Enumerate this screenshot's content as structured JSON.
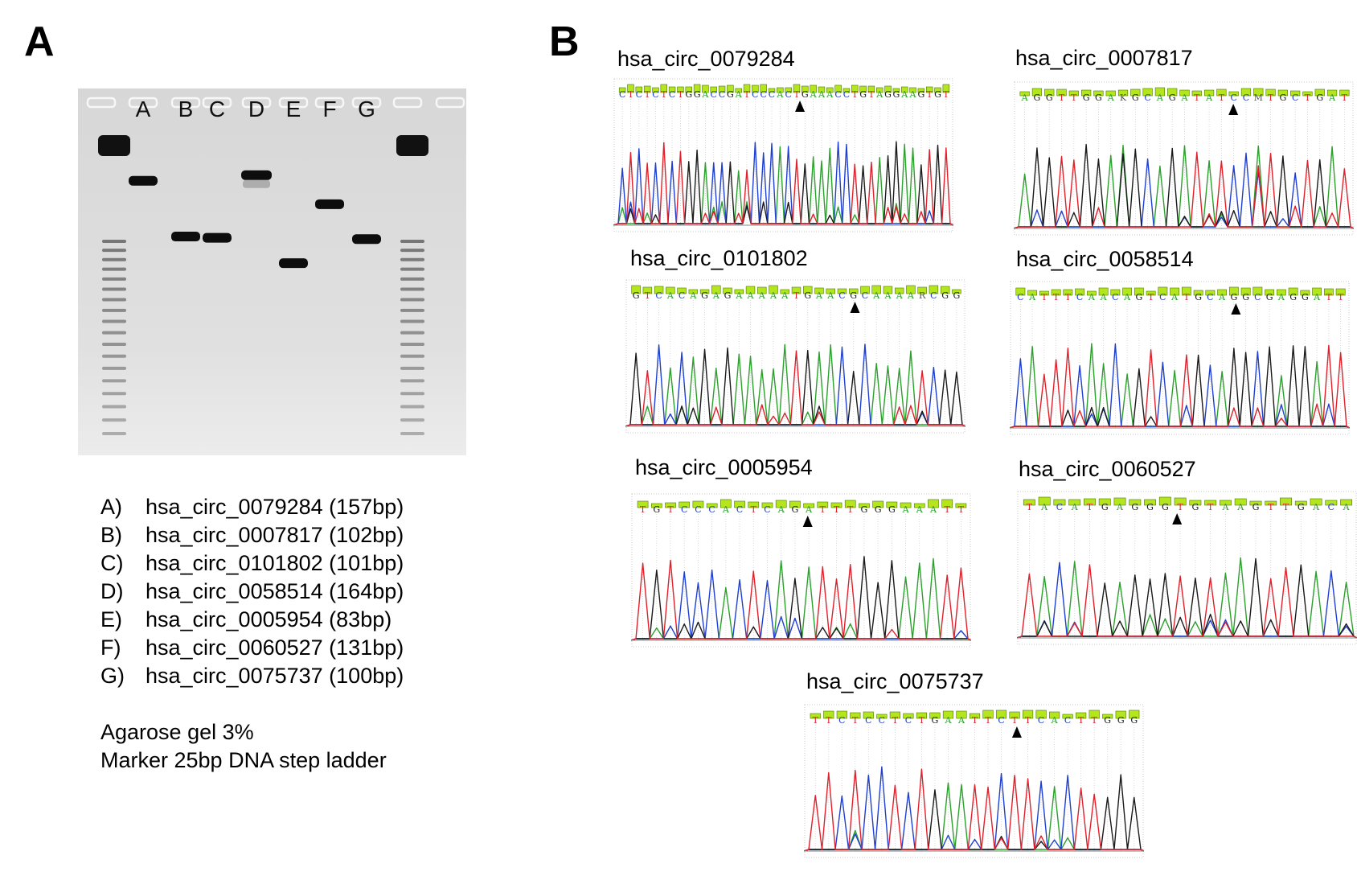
{
  "figure": {
    "panel_a": "A",
    "panel_b": "B"
  },
  "gel": {
    "lane_labels": [
      "A",
      "B",
      "C",
      "D",
      "E",
      "F",
      "G"
    ],
    "bands_bp": [
      157,
      102,
      101,
      164,
      83,
      131,
      100
    ],
    "ladder": "25bp"
  },
  "legend": [
    {
      "key": "A)",
      "text": "hsa_circ_0079284 (157bp)"
    },
    {
      "key": "B)",
      "text": "hsa_circ_0007817 (102bp)"
    },
    {
      "key": "C)",
      "text": "hsa_circ_0101802 (101bp)"
    },
    {
      "key": "D)",
      "text": "hsa_circ_0058514 (164bp)"
    },
    {
      "key": "E)",
      "text": "hsa_circ_0005954 (83bp)"
    },
    {
      "key": "F)",
      "text": "hsa_circ_0060527 (131bp)"
    },
    {
      "key": "G)",
      "text": "hsa_circ_0075737 (100bp)"
    }
  ],
  "notes": {
    "gel": "Agarose gel 3%",
    "marker": "Marker 25bp DNA step ladder"
  },
  "traces": [
    {
      "title": "hsa_circ_0079284",
      "seq": "CTCTCTCTGGACCGATCCCACTGAAACCTGTAGGAAGTGT",
      "junction": 0.55
    },
    {
      "title": "hsa_circ_0007817",
      "seq": "AGGTTGGAKGCAGATATCCMTGCTGAT",
      "junction": 0.65
    },
    {
      "title": "hsa_circ_0101802",
      "seq": "GTCACAGAGAAAAATGAACGCAAAARCGG",
      "junction": 0.68
    },
    {
      "title": "hsa_circ_0058514",
      "seq": "CATTTCAACAGTCATGCAGGCGAGGATT",
      "junction": 0.67
    },
    {
      "title": "hsa_circ_0005954",
      "seq": "TGTCCCACTCAGATTTGGGAAATT",
      "junction": 0.52
    },
    {
      "title": "hsa_circ_0060527",
      "seq": "TACATGAGGGTGTAAGTTGACA",
      "junction": 0.47
    },
    {
      "title": "hsa_circ_0075737",
      "seq": "TTCTCCTCTGAATTCTTCACTTGGG",
      "junction": 0.63
    }
  ],
  "colors": {
    "A": "#2ca02c",
    "C": "#1f3fd0",
    "G": "#1a1a1a",
    "T": "#e0202a",
    "quality": "#b5e61d"
  }
}
